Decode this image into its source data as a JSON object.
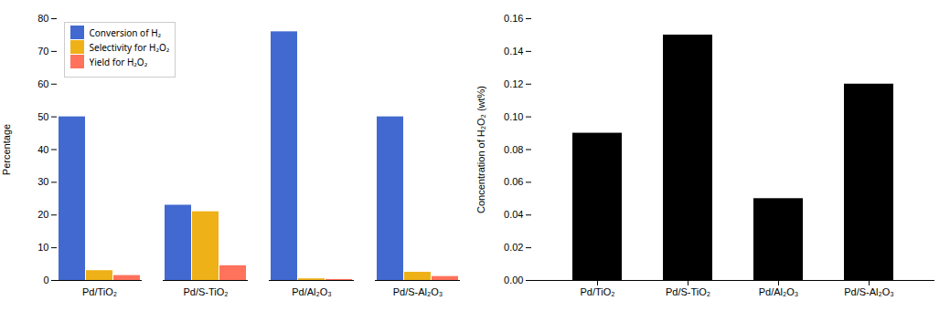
{
  "chart_data": [
    {
      "type": "bar",
      "categories": [
        "Pd/TiO₂",
        "Pd/S-TiO₂",
        "Pd/Al₂O₃",
        "Pd/S-Al₂O₃"
      ],
      "series": [
        {
          "name": "Conversion of H₂",
          "values": [
            50,
            23,
            76,
            50
          ]
        },
        {
          "name": "Selectivity for H₂O₂",
          "values": [
            3,
            21,
            0.5,
            2.5
          ]
        },
        {
          "name": "Yield for H₂O₂",
          "values": [
            1.5,
            4.5,
            0.3,
            1.2
          ]
        }
      ],
      "ylabel": "Percentage",
      "ylim": [
        0,
        80
      ],
      "yticks": [
        0,
        10,
        20,
        30,
        40,
        50,
        60,
        70,
        80
      ],
      "legend": "upper left"
    },
    {
      "type": "bar",
      "categories": [
        "Pd/TiO₂",
        "Pd/S-TiO₂",
        "Pd/Al₂O₃",
        "Pd/S-Al₂O₃"
      ],
      "values": [
        0.09,
        0.15,
        0.05,
        0.12
      ],
      "ylabel": "Concentration of H₂O₂ (wt%)",
      "ylim": [
        0,
        0.16
      ],
      "yticks": [
        {
          "value": 0,
          "label": "0.00"
        },
        0.02,
        0.04,
        0.06,
        0.08,
        {
          "value": 0.1,
          "label": "0.10"
        },
        0.12,
        0.14,
        0.16
      ]
    }
  ]
}
